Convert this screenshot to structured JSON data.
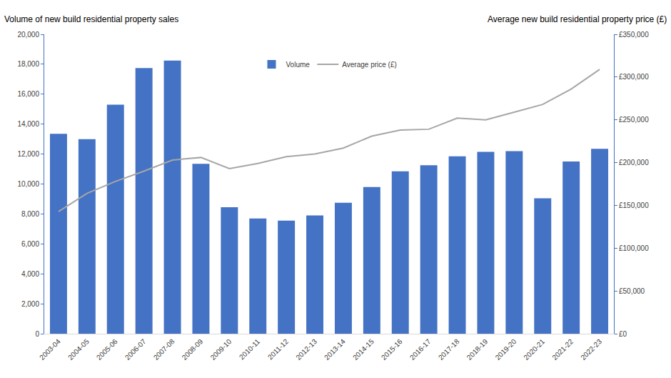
{
  "chart_data": {
    "type": "bar",
    "ylabel": "Volume of new build residential property sales",
    "y2label": "Average new build residential property price (£)",
    "categories": [
      "2003-04",
      "2004-05",
      "2005-06",
      "2006-07",
      "2007-08",
      "2008-09",
      "2009-10",
      "2010-11",
      "2011-12",
      "2012-13",
      "2013-14",
      "2014-15",
      "2015-16",
      "2016-17",
      "2017-18",
      "2018-19",
      "2019-20",
      "2020-21",
      "2021-22",
      "2022-23"
    ],
    "series": [
      {
        "name": "Volume",
        "type": "bar",
        "color": "#4472c4",
        "values": [
          13350,
          13000,
          15300,
          17750,
          18250,
          11350,
          8450,
          7700,
          7550,
          7900,
          8750,
          9800,
          10850,
          11250,
          11850,
          12150,
          12200,
          9050,
          11500,
          12350
        ]
      },
      {
        "name": "Average price (£)",
        "type": "line",
        "axis": "y2",
        "color": "#a6a6a6",
        "values": [
          142700,
          164000,
          178000,
          190000,
          203000,
          206000,
          193000,
          199000,
          207000,
          210000,
          217000,
          231000,
          238000,
          239000,
          252000,
          250000,
          259000,
          268000,
          286000,
          309000
        ]
      }
    ],
    "ylim": [
      0,
      20000
    ],
    "yticks": [
      0,
      {
        "value": 2000,
        "label": "2,000"
      },
      {
        "value": 4000,
        "label": "4,000"
      },
      {
        "value": 6000,
        "label": "6,000"
      },
      {
        "value": 8000,
        "label": "8,000"
      },
      {
        "value": 10000,
        "label": "10,000"
      },
      {
        "value": 12000,
        "label": "12,000"
      },
      {
        "value": 14000,
        "label": "14,000"
      },
      {
        "value": 16000,
        "label": "16,000"
      },
      {
        "value": 18000,
        "label": "18,000"
      },
      {
        "value": 20000,
        "label": "20,000"
      }
    ],
    "y2lim": [
      0,
      350000
    ],
    "y2ticks": [
      {
        "value": 0,
        "label": "£0"
      },
      {
        "value": 50000,
        "label": "£50,000"
      },
      {
        "value": 100000,
        "label": "£100,000"
      },
      {
        "value": 150000,
        "label": "£150,000"
      },
      {
        "value": 200000,
        "label": "£200,000"
      },
      {
        "value": 250000,
        "label": "£250,000"
      },
      {
        "value": 300000,
        "label": "£300,000"
      },
      {
        "value": 350000,
        "label": "£350,000"
      }
    ],
    "grid": false,
    "legend": "top"
  }
}
